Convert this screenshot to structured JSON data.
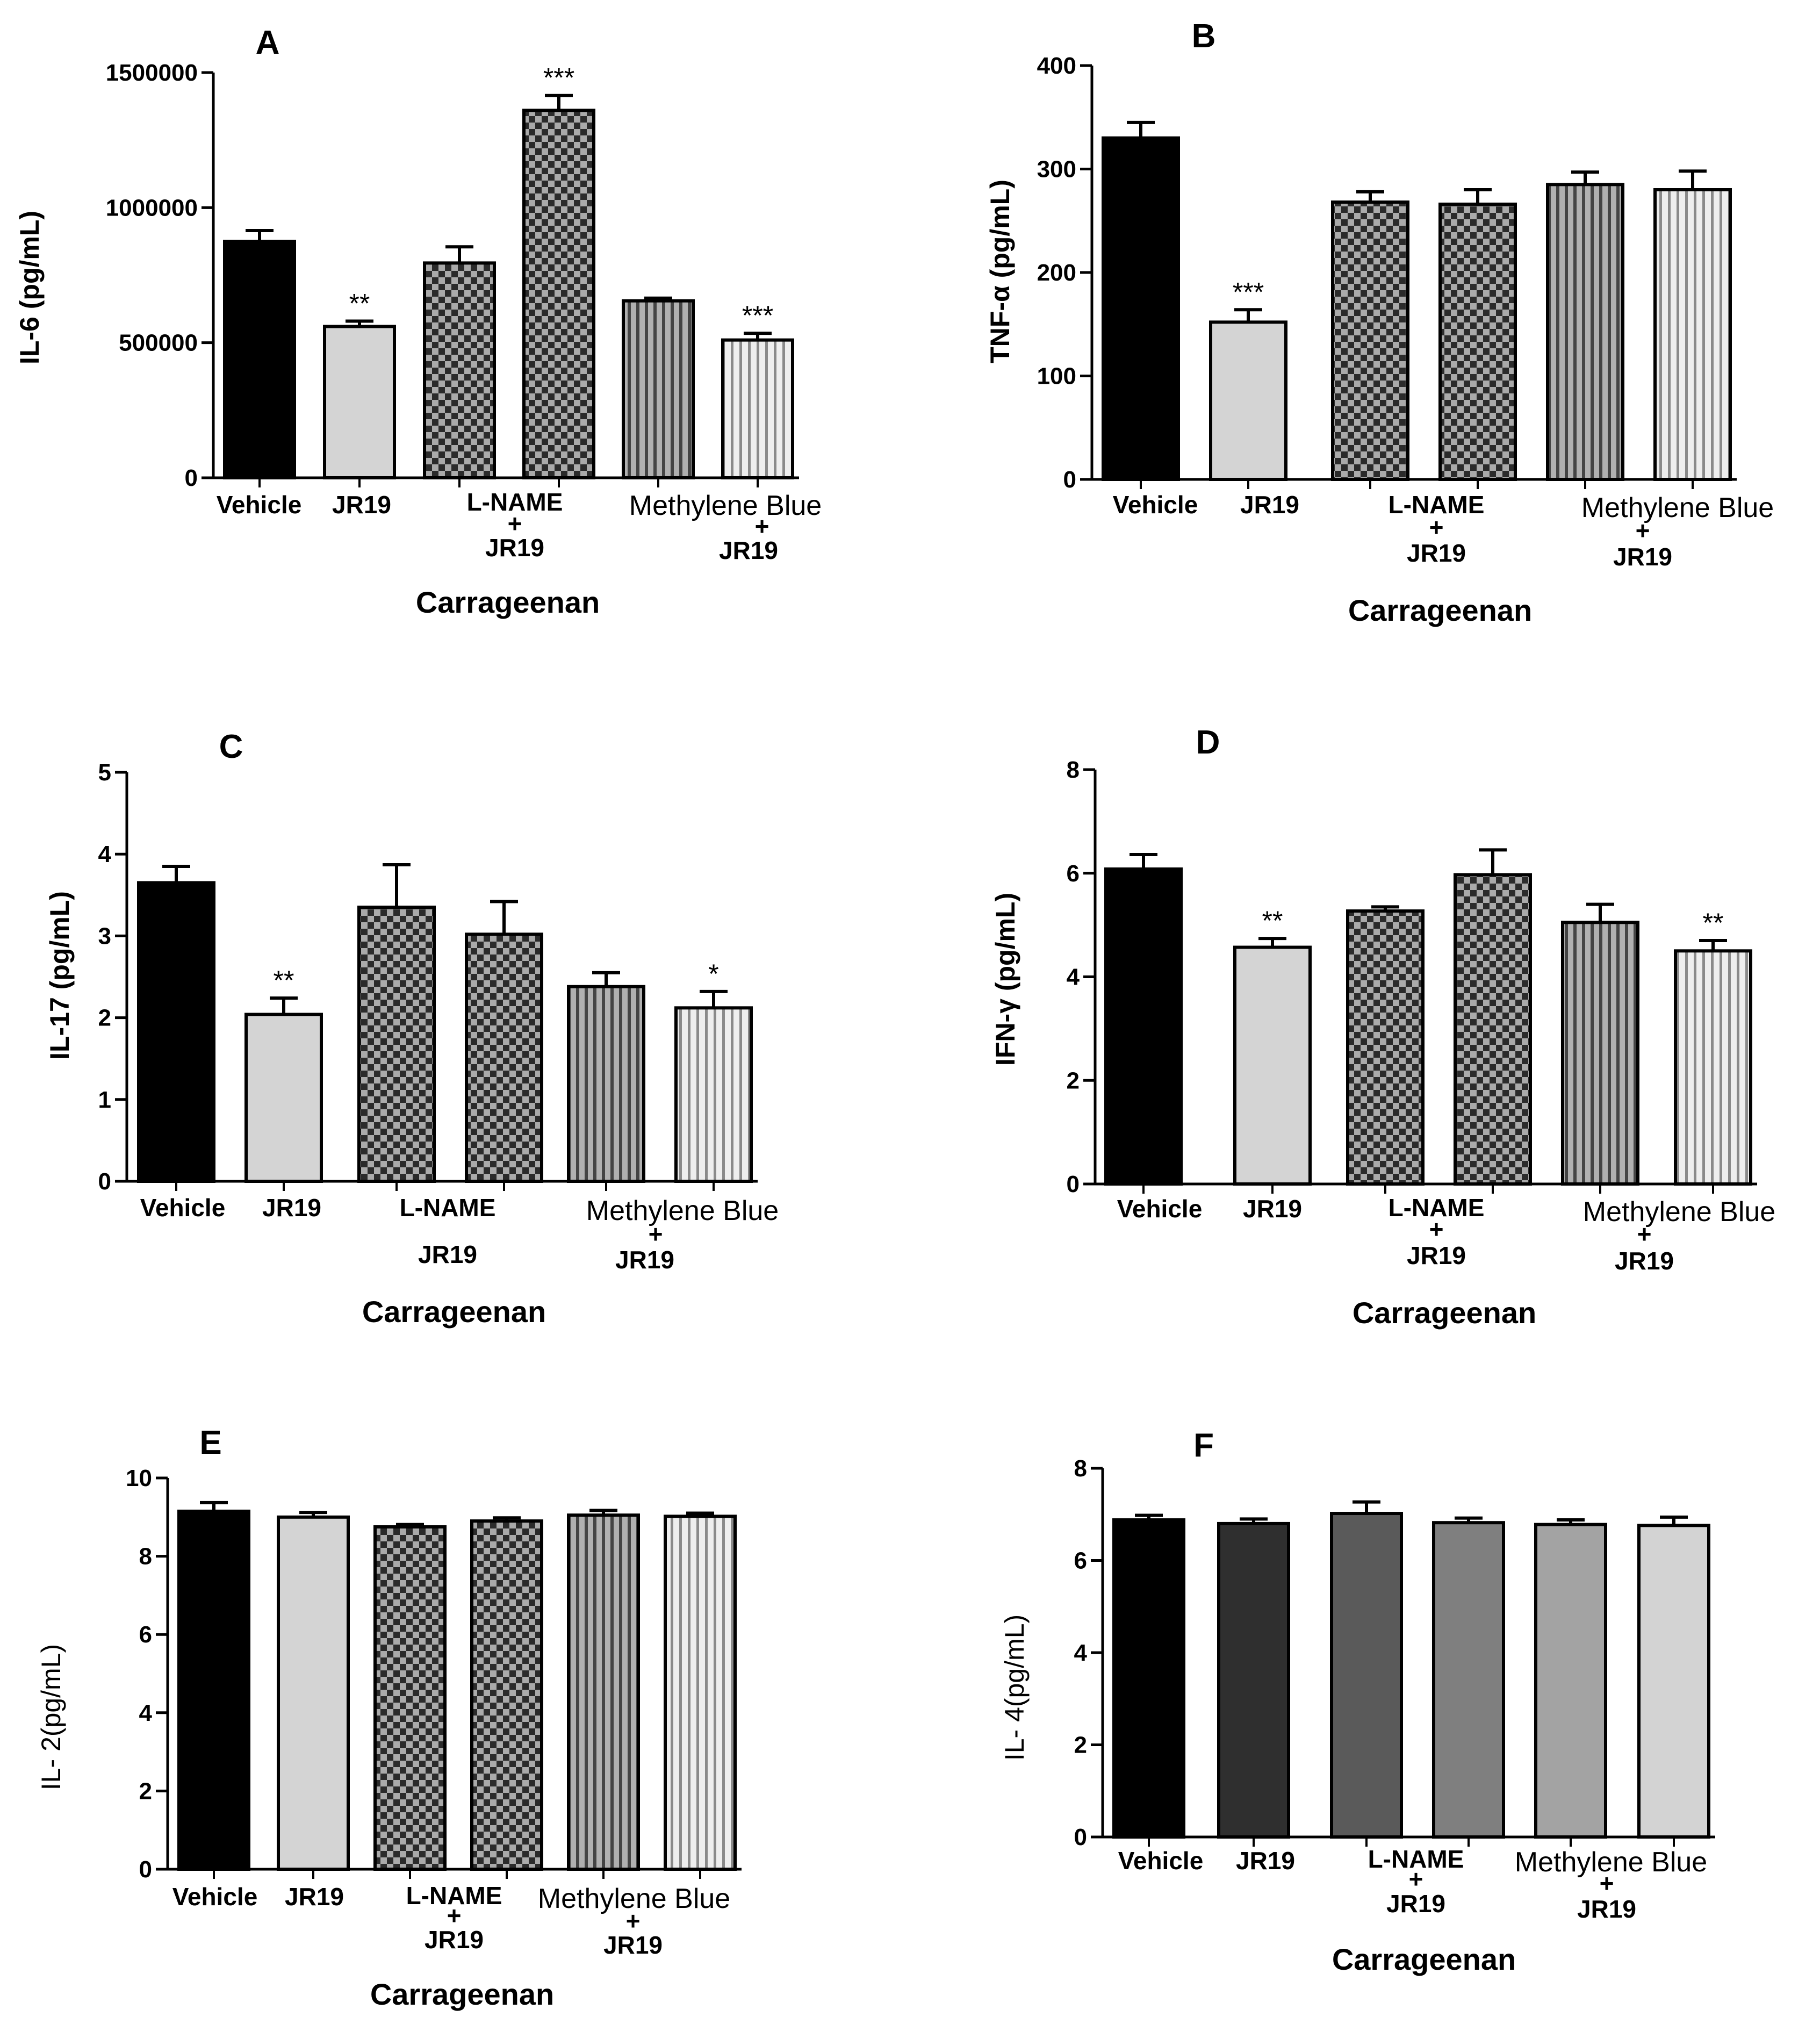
{
  "chart_data": [
    {
      "type": "bar",
      "panel": "A",
      "ylabel": "IL-6 (pg/mL)",
      "xlabel": "Carrageenan",
      "ylim": [
        0,
        1500000
      ],
      "yticks": [
        0,
        500000,
        1000000,
        1500000
      ],
      "yticks_labels": [
        "0",
        "500000",
        "1000000",
        "1500000"
      ],
      "categories": [
        "Vehicle",
        "JR19",
        "L-NAME + JR19",
        "L-NAME + JR19",
        "Methylene Blue + JR19",
        "Methylene Blue + JR19"
      ],
      "values": [
        875000,
        560000,
        795000,
        1360000,
        655000,
        510000
      ],
      "errors": [
        40000,
        20000,
        60000,
        55000,
        10000,
        25000
      ],
      "significance": [
        "",
        "**",
        "",
        "***",
        "",
        "***"
      ],
      "fills": [
        "black",
        "lightgray",
        "checker",
        "checker",
        "vstripes-dark",
        "vstripes-light"
      ]
    },
    {
      "type": "bar",
      "panel": "B",
      "ylabel": "TNF-α (pg/mL)",
      "xlabel": "Carrageenan",
      "ylim": [
        0,
        400
      ],
      "yticks": [
        0,
        100,
        200,
        300,
        400
      ],
      "yticks_labels": [
        "0",
        "100",
        "200",
        "300",
        "400"
      ],
      "categories": [
        "Vehicle",
        "JR19",
        "L-NAME + JR19",
        "L-NAME + JR19",
        "Methylene Blue + JR19",
        "Methylene Blue + JR19"
      ],
      "values": [
        330,
        152,
        268,
        266,
        285,
        280
      ],
      "errors": [
        15,
        12,
        10,
        14,
        12,
        18
      ],
      "significance": [
        "",
        "***",
        "",
        "",
        "",
        ""
      ],
      "fills": [
        "black",
        "lightgray",
        "checker",
        "checker",
        "vstripes-dark",
        "vstripes-light"
      ]
    },
    {
      "type": "bar",
      "panel": "C",
      "ylabel": "IL-17 (pg/mL)",
      "xlabel": "Carrageenan",
      "ylim": [
        0,
        5
      ],
      "yticks": [
        0,
        1,
        2,
        3,
        4,
        5
      ],
      "yticks_labels": [
        "0",
        "1",
        "2",
        "3",
        "4",
        "5"
      ],
      "categories": [
        "Vehicle",
        "JR19",
        "L-NAME JR19",
        "L-NAME JR19",
        "Methylene Blue + JR19",
        "Methylene Blue + JR19"
      ],
      "values": [
        3.65,
        2.04,
        3.35,
        3.02,
        2.38,
        2.12
      ],
      "errors": [
        0.2,
        0.2,
        0.52,
        0.4,
        0.17,
        0.2
      ],
      "significance": [
        "",
        "**",
        "",
        "",
        "",
        "*"
      ],
      "fills": [
        "black",
        "lightgray",
        "checker",
        "checker",
        "vstripes-dark",
        "vstripes-light"
      ]
    },
    {
      "type": "bar",
      "panel": "D",
      "ylabel": "IFN-γ (pg/mL)",
      "xlabel": "Carrageenan",
      "ylim": [
        0,
        8
      ],
      "yticks": [
        0,
        2,
        4,
        6,
        8
      ],
      "yticks_labels": [
        "0",
        "2",
        "4",
        "6",
        "8"
      ],
      "categories": [
        "Vehicle",
        "JR19",
        "L-NAME + JR19",
        "L-NAME + JR19",
        "Methylene Blue + JR19",
        "Methylene Blue + JR19"
      ],
      "values": [
        6.08,
        4.57,
        5.27,
        5.97,
        5.05,
        4.5
      ],
      "errors": [
        0.28,
        0.17,
        0.08,
        0.48,
        0.35,
        0.2
      ],
      "significance": [
        "",
        "**",
        "",
        "",
        "",
        "**"
      ],
      "fills": [
        "black",
        "lightgray",
        "checker",
        "checker",
        "vstripes-dark",
        "vstripes-light"
      ]
    },
    {
      "type": "bar",
      "panel": "E",
      "ylabel": "IL- 2(pg/mL)",
      "xlabel": "Carrageenan",
      "ylim": [
        0,
        10
      ],
      "yticks": [
        0,
        2,
        4,
        6,
        8,
        10
      ],
      "yticks_labels": [
        "0",
        "2",
        "4",
        "6",
        "8",
        "10"
      ],
      "categories": [
        "Vehicle",
        "JR19",
        "L-NAME + JR19",
        "L-NAME + JR19",
        "Methylene Blue + JR19",
        "Methylene Blue + JR19"
      ],
      "values": [
        9.15,
        9.0,
        8.75,
        8.9,
        9.05,
        9.02
      ],
      "errors": [
        0.22,
        0.12,
        0.06,
        0.08,
        0.12,
        0.08
      ],
      "significance": [
        "",
        "",
        "",
        "",
        "",
        ""
      ],
      "fills": [
        "black",
        "lightgray",
        "checker",
        "checker",
        "vstripes-dark",
        "vstripes-light"
      ]
    },
    {
      "type": "bar",
      "panel": "F",
      "ylabel": "IL- 4(pg/mL)",
      "xlabel": "Carrageenan",
      "ylim": [
        0,
        8
      ],
      "yticks": [
        0,
        2,
        4,
        6,
        8
      ],
      "yticks_labels": [
        "0",
        "2",
        "4",
        "6",
        "8"
      ],
      "categories": [
        "Vehicle",
        "JR19",
        "L-NAME + JR19",
        "L-NAME + JR19",
        "Methylene Blue + JR19",
        "Methylene Blue + JR19"
      ],
      "values": [
        6.88,
        6.8,
        7.02,
        6.82,
        6.78,
        6.76
      ],
      "errors": [
        0.1,
        0.1,
        0.25,
        0.1,
        0.1,
        0.18
      ],
      "significance": [
        "",
        "",
        "",
        "",
        "",
        ""
      ],
      "fills": [
        "#000000",
        "#2f2f2f",
        "#5a5a5a",
        "#7f7f7f",
        "#a3a3a3",
        "#d3d3d3"
      ]
    }
  ],
  "panels": {
    "A": {
      "letter": "A",
      "ylabel": "IL-6 (pg/mL)",
      "xtitle": "Carrageenan",
      "ticks": [
        "0",
        "500000",
        "1000000",
        "1500000"
      ],
      "cat_vehicle": "Vehicle",
      "cat_jr19": "JR19",
      "cat_lname": "L-NAME",
      "cat_lname_plus": "+",
      "cat_lname_jr19": "JR19",
      "cat_mb": "Methylene Blue",
      "cat_mb_plus": "+",
      "cat_mb_jr19": "JR19",
      "sig": [
        "",
        "**",
        "",
        "***",
        "",
        "***"
      ]
    },
    "B": {
      "letter": "B",
      "ylabel": "TNF-α (pg/mL)",
      "xtitle": "Carrageenan",
      "ticks": [
        "0",
        "100",
        "200",
        "300",
        "400"
      ],
      "cat_vehicle": "Vehicle",
      "cat_jr19": "JR19",
      "cat_lname": "L-NAME",
      "cat_lname_plus": "+",
      "cat_lname_jr19": "JR19",
      "cat_mb": "Methylene Blue",
      "cat_mb_plus": "+",
      "cat_mb_jr19": "JR19",
      "sig": [
        "",
        "***",
        "",
        "",
        "",
        ""
      ]
    },
    "C": {
      "letter": "C",
      "ylabel": "IL-17 (pg/mL)",
      "xtitle": "Carrageenan",
      "ticks": [
        "0",
        "1",
        "2",
        "3",
        "4",
        "5"
      ],
      "cat_vehicle": "Vehicle",
      "cat_jr19": "JR19",
      "cat_lname": "L-NAME",
      "cat_lname_plus": "",
      "cat_lname_jr19": "JR19",
      "cat_mb": "Methylene Blue",
      "cat_mb_plus": "+",
      "cat_mb_jr19": "JR19",
      "sig": [
        "",
        "**",
        "",
        "",
        "",
        "*"
      ]
    },
    "D": {
      "letter": "D",
      "ylabel": "IFN-γ (pg/mL)",
      "xtitle": "Carrageenan",
      "ticks": [
        "0",
        "2",
        "4",
        "6",
        "8"
      ],
      "cat_vehicle": "Vehicle",
      "cat_jr19": "JR19",
      "cat_lname": "L-NAME",
      "cat_lname_plus": "+",
      "cat_lname_jr19": "JR19",
      "cat_mb": "Methylene Blue",
      "cat_mb_plus": "+",
      "cat_mb_jr19": "JR19",
      "sig": [
        "",
        "**",
        "",
        "",
        "",
        "**"
      ]
    },
    "E": {
      "letter": "E",
      "ylabel": "IL- 2(pg/mL)",
      "xtitle": "Carrageenan",
      "ticks": [
        "0",
        "2",
        "4",
        "6",
        "8",
        "10"
      ],
      "cat_vehicle": "Vehicle",
      "cat_jr19": "JR19",
      "cat_lname": "L-NAME",
      "cat_lname_plus": "+",
      "cat_lname_jr19": "JR19",
      "cat_mb": "Methylene Blue",
      "cat_mb_plus": "+",
      "cat_mb_jr19": "JR19",
      "sig": [
        "",
        "",
        "",
        "",
        "",
        ""
      ]
    },
    "F": {
      "letter": "F",
      "ylabel": "IL- 4(pg/mL)",
      "xtitle": "Carrageenan",
      "ticks": [
        "0",
        "2",
        "4",
        "6",
        "8"
      ],
      "cat_vehicle": "Vehicle",
      "cat_jr19": "JR19",
      "cat_lname": "L-NAME",
      "cat_lname_plus": "+",
      "cat_lname_jr19": "JR19",
      "cat_mb": "Methylene Blue",
      "cat_mb_plus": "+",
      "cat_mb_jr19": "JR19",
      "sig": [
        "",
        "",
        "",
        "",
        "",
        ""
      ]
    }
  }
}
